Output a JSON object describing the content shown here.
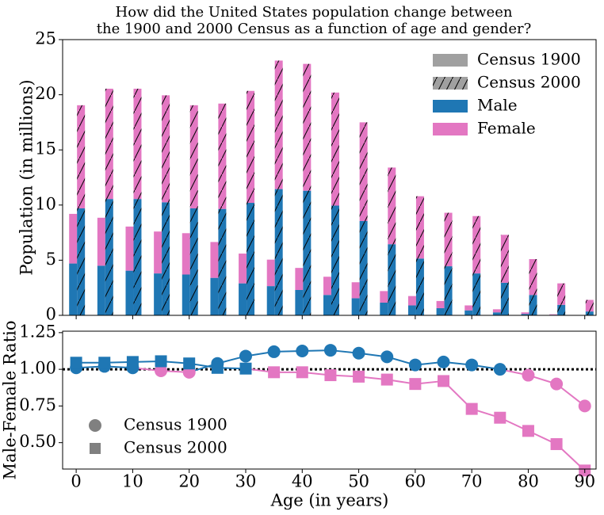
{
  "chart_data": [
    {
      "type": "stacked_bar",
      "title": [
        "How did the United States population change between",
        "the 1900 and 2000 Census as a function of age and gender?"
      ],
      "ylabel": "Population (in millions)",
      "x": [
        0,
        5,
        10,
        15,
        20,
        25,
        30,
        35,
        40,
        45,
        50,
        55,
        60,
        65,
        70,
        75,
        80,
        85,
        90
      ],
      "xlim": [
        -2.4,
        92
      ],
      "xticks": [
        0,
        10,
        20,
        30,
        40,
        50,
        60,
        70,
        80,
        90
      ],
      "ylim": [
        0,
        25
      ],
      "yticks": [
        0,
        5,
        10,
        15,
        20,
        25
      ],
      "groups": [
        {
          "name": "Census 1900",
          "color": "#a0a0a0",
          "hatch": false
        },
        {
          "name": "Census 2000",
          "color": "#a0a0a0",
          "hatch": true
        }
      ],
      "series": [
        {
          "name": "Male",
          "color": "#1f77b4",
          "values": [
            [
              4.7,
              4.5,
              4.05,
              3.8,
              3.7,
              3.4,
              2.9,
              2.65,
              2.3,
              1.85,
              1.55,
              1.15,
              0.9,
              0.65,
              0.45,
              0.27,
              0.13,
              0.05,
              0.01
            ],
            [
              9.7,
              10.55,
              10.55,
              10.25,
              9.7,
              9.65,
              10.2,
              11.45,
              11.3,
              9.95,
              8.55,
              6.45,
              5.15,
              4.45,
              3.8,
              2.95,
              1.85,
              0.95,
              0.35
            ]
          ]
        },
        {
          "name": "Female",
          "color": "#e377c2",
          "values": [
            [
              4.5,
              4.35,
              4.0,
              3.8,
              3.75,
              3.25,
              2.7,
              2.4,
              2.0,
              1.65,
              1.45,
              1.05,
              0.85,
              0.65,
              0.45,
              0.28,
              0.14,
              0.05,
              0.02
            ],
            [
              9.35,
              10.0,
              10.0,
              9.7,
              9.35,
              9.55,
              10.15,
              11.65,
              11.5,
              10.25,
              8.95,
              6.95,
              5.65,
              4.85,
              5.2,
              4.35,
              3.25,
              1.95,
              1.05
            ]
          ]
        }
      ],
      "legend": "upper right"
    },
    {
      "type": "line",
      "xlabel": "Age (in years)",
      "ylabel": "Male-Female Ratio",
      "x": [
        0,
        5,
        10,
        15,
        20,
        25,
        30,
        35,
        40,
        45,
        50,
        55,
        60,
        65,
        70,
        75,
        80,
        85,
        90
      ],
      "xlim": [
        -2.4,
        92
      ],
      "xticks": [
        0,
        10,
        20,
        30,
        40,
        50,
        60,
        70,
        80,
        90
      ],
      "ylim": [
        0.32,
        1.26
      ],
      "yticks": [
        {
          "value": 0.5,
          "label": "0.50"
        },
        {
          "value": 0.75,
          "label": "0.75"
        },
        {
          "value": 1.0,
          "label": "1.00"
        },
        {
          "value": 1.25,
          "label": "1.25"
        }
      ],
      "reference_line": 1,
      "above_color": "#1f77b4",
      "below_color": "#e377c2",
      "legend_color": "#808080",
      "series": [
        {
          "name": "Census 1900",
          "marker": "circle",
          "values": [
            1.01,
            1.02,
            1.01,
            0.99,
            0.98,
            1.04,
            1.09,
            1.12,
            1.125,
            1.13,
            1.11,
            1.085,
            1.03,
            1.05,
            1.03,
            1.0,
            0.96,
            0.9,
            0.75
          ]
        },
        {
          "name": "Census 2000",
          "marker": "square",
          "values": [
            1.045,
            1.045,
            1.05,
            1.055,
            1.04,
            1.01,
            1.005,
            0.98,
            0.98,
            0.96,
            0.95,
            0.93,
            0.9,
            0.92,
            0.73,
            0.67,
            0.58,
            0.49,
            0.31
          ]
        }
      ],
      "legend": "lower left"
    }
  ]
}
